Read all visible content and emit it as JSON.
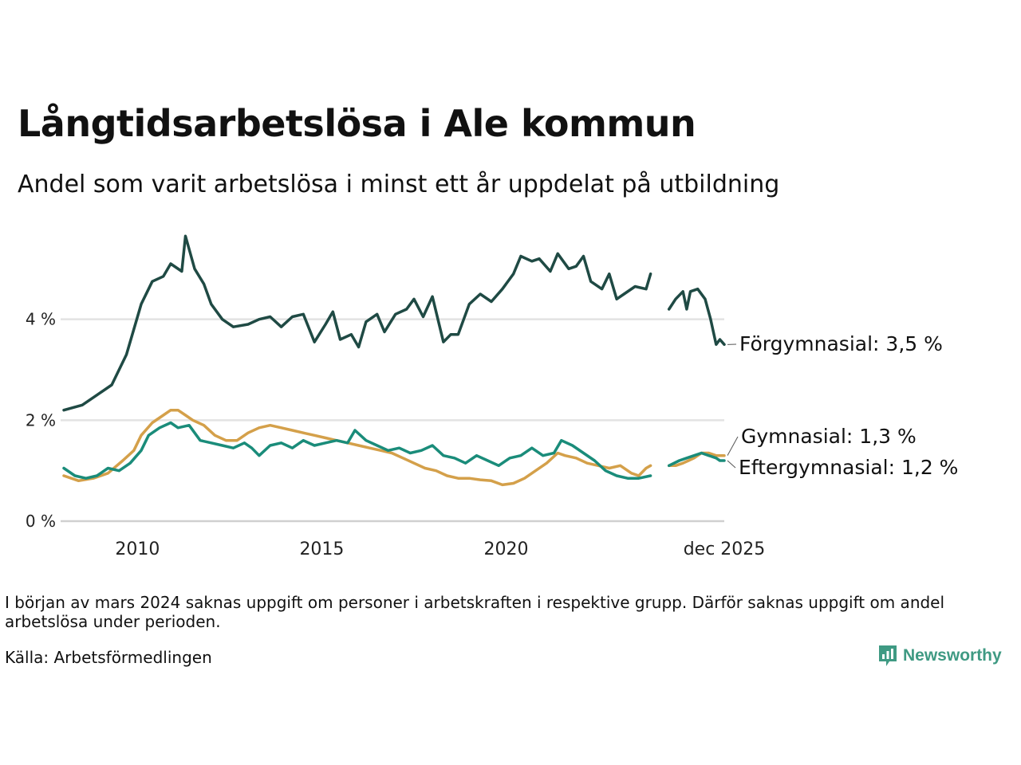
{
  "title": "Långtidsarbetslösa i Ale kommun",
  "subtitle": "Andel som varit arbetslösa i minst ett år uppdelat på utbildning",
  "note": "I början av mars 2024 saknas uppgift om personer i arbetskraften i respektive grupp. Därför saknas uppgift om andel arbetslösa under perioden.",
  "source": "Källa: Arbetsförmedlingen",
  "logo": {
    "label": "Newsworthy",
    "icon": "bar-chart-bubble-icon"
  },
  "colors": {
    "forgymnasial": "#1f4a44",
    "gymnasial": "#d4a04a",
    "eftergymnasial": "#1a8c7a",
    "grid": "#e3e3e3",
    "logo": "#3f9a83"
  },
  "chart_data": {
    "type": "line",
    "title": "Långtidsarbetslösa i Ale kommun",
    "subtitle": "Andel som varit arbetslösa i minst ett år uppdelat på utbildning",
    "xlabel": "",
    "ylabel": "",
    "x_range": [
      2008.0,
      2025.92
    ],
    "ylim": [
      0,
      6
    ],
    "y_ticks": [
      {
        "value": 0,
        "label": "0 %"
      },
      {
        "value": 2,
        "label": "2 %"
      },
      {
        "value": 4,
        "label": "4 %"
      }
    ],
    "x_ticks": [
      {
        "value": 2010,
        "label": "2010"
      },
      {
        "value": 2015,
        "label": "2015"
      },
      {
        "value": 2020,
        "label": "2020"
      },
      {
        "value": 2025.92,
        "label": "dec 2025"
      }
    ],
    "grid": true,
    "gap": [
      2023.92,
      2024.42
    ],
    "series": [
      {
        "name": "Förgymnasial",
        "end_label": "Förgymnasial: 3,5 %",
        "color_key": "forgymnasial",
        "points": [
          [
            2008.0,
            2.2
          ],
          [
            2008.5,
            2.3
          ],
          [
            2008.9,
            2.5
          ],
          [
            2009.3,
            2.7
          ],
          [
            2009.7,
            3.3
          ],
          [
            2010.1,
            4.3
          ],
          [
            2010.4,
            4.75
          ],
          [
            2010.7,
            4.85
          ],
          [
            2010.9,
            5.1
          ],
          [
            2011.2,
            4.95
          ],
          [
            2011.3,
            5.65
          ],
          [
            2011.55,
            5.0
          ],
          [
            2011.8,
            4.7
          ],
          [
            2012.0,
            4.3
          ],
          [
            2012.3,
            4.0
          ],
          [
            2012.6,
            3.85
          ],
          [
            2013.0,
            3.9
          ],
          [
            2013.3,
            4.0
          ],
          [
            2013.6,
            4.05
          ],
          [
            2013.9,
            3.85
          ],
          [
            2014.2,
            4.05
          ],
          [
            2014.5,
            4.1
          ],
          [
            2014.8,
            3.55
          ],
          [
            2015.1,
            3.9
          ],
          [
            2015.3,
            4.15
          ],
          [
            2015.5,
            3.6
          ],
          [
            2015.8,
            3.7
          ],
          [
            2016.0,
            3.45
          ],
          [
            2016.2,
            3.95
          ],
          [
            2016.5,
            4.1
          ],
          [
            2016.7,
            3.75
          ],
          [
            2017.0,
            4.1
          ],
          [
            2017.3,
            4.2
          ],
          [
            2017.5,
            4.4
          ],
          [
            2017.75,
            4.05
          ],
          [
            2018.0,
            4.45
          ],
          [
            2018.3,
            3.55
          ],
          [
            2018.5,
            3.7
          ],
          [
            2018.7,
            3.7
          ],
          [
            2019.0,
            4.3
          ],
          [
            2019.3,
            4.5
          ],
          [
            2019.6,
            4.35
          ],
          [
            2019.9,
            4.6
          ],
          [
            2020.2,
            4.9
          ],
          [
            2020.4,
            5.25
          ],
          [
            2020.7,
            5.15
          ],
          [
            2020.9,
            5.2
          ],
          [
            2021.2,
            4.95
          ],
          [
            2021.4,
            5.3
          ],
          [
            2021.7,
            5.0
          ],
          [
            2021.9,
            5.05
          ],
          [
            2022.1,
            5.25
          ],
          [
            2022.3,
            4.75
          ],
          [
            2022.6,
            4.6
          ],
          [
            2022.8,
            4.9
          ],
          [
            2023.0,
            4.4
          ],
          [
            2023.2,
            4.5
          ],
          [
            2023.5,
            4.65
          ],
          [
            2023.8,
            4.6
          ],
          [
            2023.92,
            4.9
          ],
          [
            null,
            null
          ],
          [
            2024.42,
            4.2
          ],
          [
            2024.6,
            4.4
          ],
          [
            2024.8,
            4.55
          ],
          [
            2024.9,
            4.2
          ],
          [
            2025.0,
            4.55
          ],
          [
            2025.2,
            4.6
          ],
          [
            2025.4,
            4.4
          ],
          [
            2025.55,
            4.0
          ],
          [
            2025.7,
            3.5
          ],
          [
            2025.8,
            3.6
          ],
          [
            2025.92,
            3.5
          ]
        ]
      },
      {
        "name": "Gymnasial",
        "end_label": "Gymnasial: 1,3 %",
        "color_key": "gymnasial",
        "points": [
          [
            2008.0,
            0.9
          ],
          [
            2008.4,
            0.8
          ],
          [
            2008.8,
            0.85
          ],
          [
            2009.2,
            0.95
          ],
          [
            2009.6,
            1.2
          ],
          [
            2009.9,
            1.4
          ],
          [
            2010.1,
            1.7
          ],
          [
            2010.4,
            1.95
          ],
          [
            2010.7,
            2.1
          ],
          [
            2010.9,
            2.2
          ],
          [
            2011.1,
            2.2
          ],
          [
            2011.3,
            2.1
          ],
          [
            2011.5,
            2.0
          ],
          [
            2011.8,
            1.9
          ],
          [
            2012.1,
            1.7
          ],
          [
            2012.4,
            1.6
          ],
          [
            2012.7,
            1.6
          ],
          [
            2013.0,
            1.75
          ],
          [
            2013.3,
            1.85
          ],
          [
            2013.6,
            1.9
          ],
          [
            2013.9,
            1.85
          ],
          [
            2014.2,
            1.8
          ],
          [
            2014.5,
            1.75
          ],
          [
            2014.8,
            1.7
          ],
          [
            2015.1,
            1.65
          ],
          [
            2015.4,
            1.6
          ],
          [
            2015.7,
            1.55
          ],
          [
            2016.0,
            1.5
          ],
          [
            2016.3,
            1.45
          ],
          [
            2016.6,
            1.4
          ],
          [
            2016.9,
            1.35
          ],
          [
            2017.2,
            1.25
          ],
          [
            2017.5,
            1.15
          ],
          [
            2017.8,
            1.05
          ],
          [
            2018.1,
            1.0
          ],
          [
            2018.4,
            0.9
          ],
          [
            2018.7,
            0.85
          ],
          [
            2019.0,
            0.85
          ],
          [
            2019.3,
            0.82
          ],
          [
            2019.6,
            0.8
          ],
          [
            2019.9,
            0.72
          ],
          [
            2020.2,
            0.75
          ],
          [
            2020.5,
            0.85
          ],
          [
            2020.8,
            1.0
          ],
          [
            2021.1,
            1.15
          ],
          [
            2021.4,
            1.35
          ],
          [
            2021.6,
            1.3
          ],
          [
            2021.9,
            1.25
          ],
          [
            2022.2,
            1.15
          ],
          [
            2022.5,
            1.1
          ],
          [
            2022.8,
            1.05
          ],
          [
            2023.1,
            1.1
          ],
          [
            2023.4,
            0.95
          ],
          [
            2023.6,
            0.9
          ],
          [
            2023.8,
            1.05
          ],
          [
            2023.92,
            1.1
          ],
          [
            null,
            null
          ],
          [
            2024.42,
            1.1
          ],
          [
            2024.6,
            1.1
          ],
          [
            2024.8,
            1.15
          ],
          [
            2024.95,
            1.2
          ],
          [
            2025.1,
            1.25
          ],
          [
            2025.3,
            1.35
          ],
          [
            2025.5,
            1.35
          ],
          [
            2025.7,
            1.3
          ],
          [
            2025.92,
            1.3
          ]
        ]
      },
      {
        "name": "Eftergymnasial",
        "end_label": "Eftergymnasial: 1,2 %",
        "color_key": "eftergymnasial",
        "points": [
          [
            2008.0,
            1.05
          ],
          [
            2008.3,
            0.9
          ],
          [
            2008.6,
            0.85
          ],
          [
            2008.9,
            0.9
          ],
          [
            2009.2,
            1.05
          ],
          [
            2009.5,
            1.0
          ],
          [
            2009.8,
            1.15
          ],
          [
            2010.1,
            1.4
          ],
          [
            2010.3,
            1.7
          ],
          [
            2010.6,
            1.85
          ],
          [
            2010.9,
            1.95
          ],
          [
            2011.1,
            1.85
          ],
          [
            2011.4,
            1.9
          ],
          [
            2011.7,
            1.6
          ],
          [
            2012.0,
            1.55
          ],
          [
            2012.3,
            1.5
          ],
          [
            2012.6,
            1.45
          ],
          [
            2012.9,
            1.55
          ],
          [
            2013.1,
            1.45
          ],
          [
            2013.3,
            1.3
          ],
          [
            2013.6,
            1.5
          ],
          [
            2013.9,
            1.55
          ],
          [
            2014.2,
            1.45
          ],
          [
            2014.5,
            1.6
          ],
          [
            2014.8,
            1.5
          ],
          [
            2015.1,
            1.55
          ],
          [
            2015.4,
            1.6
          ],
          [
            2015.7,
            1.55
          ],
          [
            2015.9,
            1.8
          ],
          [
            2016.2,
            1.6
          ],
          [
            2016.5,
            1.5
          ],
          [
            2016.8,
            1.4
          ],
          [
            2017.1,
            1.45
          ],
          [
            2017.4,
            1.35
          ],
          [
            2017.7,
            1.4
          ],
          [
            2018.0,
            1.5
          ],
          [
            2018.3,
            1.3
          ],
          [
            2018.6,
            1.25
          ],
          [
            2018.9,
            1.15
          ],
          [
            2019.2,
            1.3
          ],
          [
            2019.5,
            1.2
          ],
          [
            2019.8,
            1.1
          ],
          [
            2020.1,
            1.25
          ],
          [
            2020.4,
            1.3
          ],
          [
            2020.7,
            1.45
          ],
          [
            2021.0,
            1.3
          ],
          [
            2021.3,
            1.35
          ],
          [
            2021.5,
            1.6
          ],
          [
            2021.8,
            1.5
          ],
          [
            2022.1,
            1.35
          ],
          [
            2022.4,
            1.2
          ],
          [
            2022.7,
            1.0
          ],
          [
            2023.0,
            0.9
          ],
          [
            2023.3,
            0.85
          ],
          [
            2023.6,
            0.85
          ],
          [
            2023.92,
            0.9
          ],
          [
            null,
            null
          ],
          [
            2024.42,
            1.1
          ],
          [
            2024.7,
            1.2
          ],
          [
            2024.9,
            1.25
          ],
          [
            2025.1,
            1.3
          ],
          [
            2025.3,
            1.35
          ],
          [
            2025.5,
            1.3
          ],
          [
            2025.7,
            1.25
          ],
          [
            2025.8,
            1.2
          ],
          [
            2025.92,
            1.2
          ]
        ]
      }
    ]
  }
}
